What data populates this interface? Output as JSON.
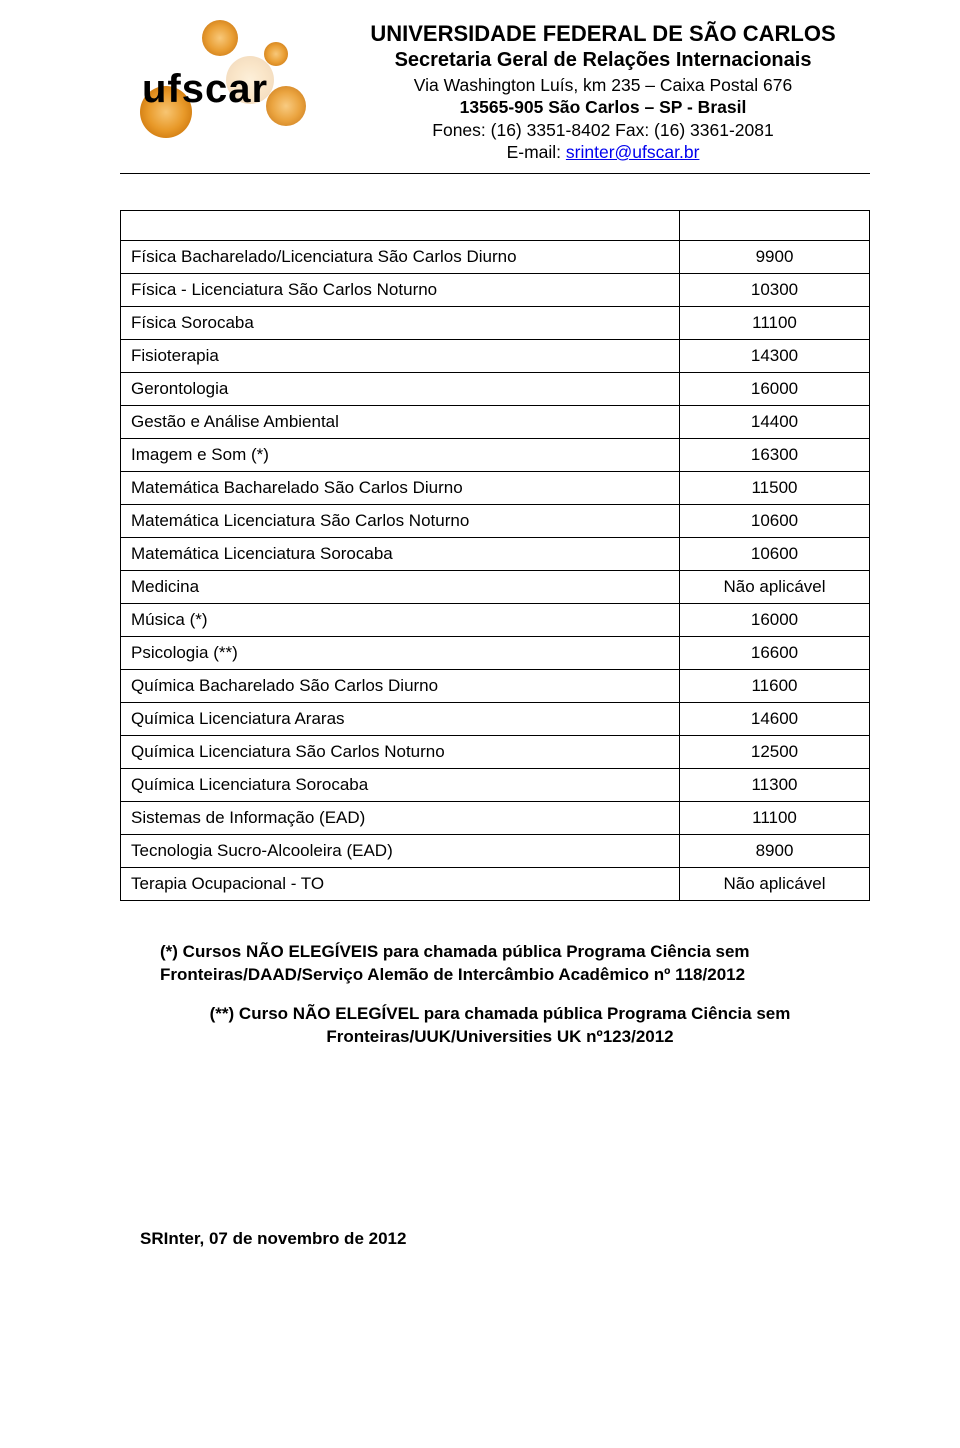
{
  "header": {
    "line1": "UNIVERSIDADE FEDERAL DE SÃO CARLOS",
    "line2": "Secretaria Geral de Relações Internacionais",
    "line3": "Via Washington Luís, km 235 – Caixa Postal 676",
    "line4": "13565-905 São Carlos – SP - Brasil",
    "line5": "Fones: (16) 3351-8402 Fax: (16) 3361-2081",
    "line6_prefix": "E-mail: ",
    "email": "srinter@ufscar.br",
    "logo_text": "ufscar",
    "logo_colors": {
      "halo": "#e7941e",
      "text": "#000000"
    }
  },
  "table": {
    "rows": [
      {
        "label": "Física Bacharelado/Licenciatura São Carlos Diurno",
        "value": "9900"
      },
      {
        "label": "Física - Licenciatura São Carlos Noturno",
        "value": "10300"
      },
      {
        "label": "Física Sorocaba",
        "value": "11100"
      },
      {
        "label": "Fisioterapia",
        "value": "14300"
      },
      {
        "label": "Gerontologia",
        "value": "16000"
      },
      {
        "label": "Gestão e Análise Ambiental",
        "value": "14400"
      },
      {
        "label": "Imagem e Som (*)",
        "value": "16300"
      },
      {
        "label": "Matemática Bacharelado São Carlos Diurno",
        "value": "11500"
      },
      {
        "label": "Matemática Licenciatura São Carlos Noturno",
        "value": "10600"
      },
      {
        "label": "Matemática Licenciatura Sorocaba",
        "value": "10600"
      },
      {
        "label": "Medicina",
        "value": "Não aplicável"
      },
      {
        "label": "Música (*)",
        "value": "16000"
      },
      {
        "label": "Psicologia (**)",
        "value": "16600"
      },
      {
        "label": "Química Bacharelado São Carlos Diurno",
        "value": "11600"
      },
      {
        "label": "Química Licenciatura Araras",
        "value": "14600"
      },
      {
        "label": "Química Licenciatura São Carlos Noturno",
        "value": "12500"
      },
      {
        "label": "Química Licenciatura Sorocaba",
        "value": "11300"
      },
      {
        "label": "Sistemas de Informação (EAD)",
        "value": "11100"
      },
      {
        "label": "Tecnologia Sucro-Alcooleira (EAD)",
        "value": "8900"
      },
      {
        "label": "Terapia Ocupacional - TO",
        "value": "Não aplicável"
      }
    ],
    "border_color": "#000000",
    "font_size": 17,
    "col2_width": 190
  },
  "notes": {
    "n1": "(*) Cursos NÃO ELEGÍVEIS para chamada pública Programa Ciência sem Fronteiras/DAAD/Serviço Alemão de Intercâmbio Acadêmico nº 118/2012",
    "n2": "(**) Curso NÃO ELEGÍVEL para chamada pública Programa Ciência sem Fronteiras/UUK/Universities UK nº123/2012",
    "font_size": 17,
    "font_weight": 700
  },
  "footer": {
    "date": "SRInter, 07 de novembro de 2012",
    "font_size": 17,
    "font_weight": 700
  },
  "colors": {
    "background": "#ffffff",
    "text": "#000000",
    "link": "#0000ee"
  }
}
